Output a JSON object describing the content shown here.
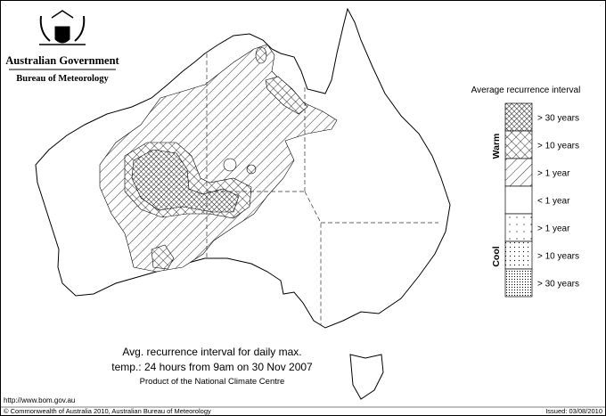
{
  "header": {
    "government": "Australian Government",
    "bureau": "Bureau of Meteorology"
  },
  "legend": {
    "title": "Average recurrence interval",
    "warm_label": "Warm",
    "cool_label": "Cool",
    "items": [
      "> 30 years",
      "> 10 years",
      "> 1 year",
      "< 1 year",
      "> 1 year",
      "> 10 years",
      "> 30 years"
    ]
  },
  "caption": {
    "line1": "Avg. recurrence interval for daily max.",
    "line2": "temp.: 24 hours from 9am on 30 Nov 2007",
    "line3": "Product of the National Climate Centre"
  },
  "footer": {
    "url": "http://www.bom.gov.au",
    "copyright": "© Commonwealth of Australia 2010, Australian Bureau of Meteorology",
    "issued": "Issued: 03/08/2010"
  }
}
